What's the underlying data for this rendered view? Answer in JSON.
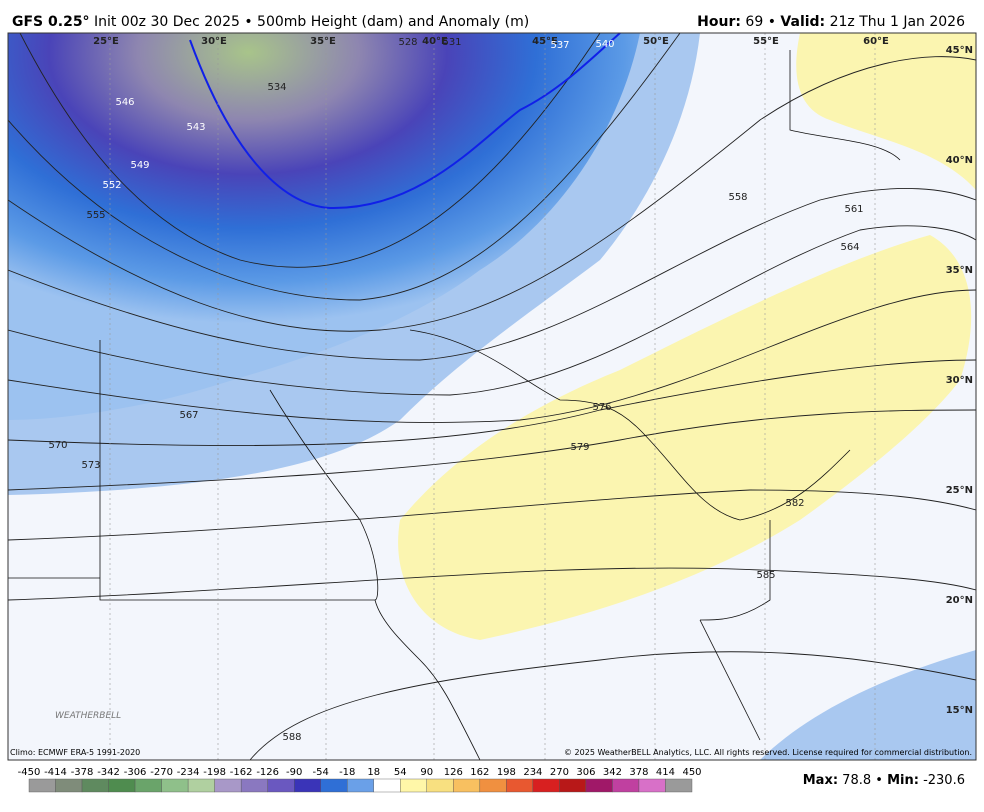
{
  "header": {
    "model": "GFS 0.25°",
    "description": "Init 00z 30 Dec 2025 • 500mb Height (dam) and Anomaly (m)",
    "hour_label": "Hour:",
    "hour": "69",
    "separator": "•",
    "valid_label": "Valid:",
    "valid": "21z Thu 1 Jan 2026"
  },
  "map": {
    "longitudes": [
      "25°E",
      "30°E",
      "35°E",
      "40°E",
      "45°E",
      "50°E",
      "55°E",
      "60°E"
    ],
    "latitudes": [
      "45°N",
      "40°N",
      "35°N",
      "30°N",
      "25°N",
      "20°N",
      "15°N"
    ],
    "contour_labels": [
      546,
      543,
      549,
      552,
      555,
      534,
      528,
      531,
      537,
      540,
      558,
      561,
      564,
      567,
      570,
      573,
      576,
      579,
      582,
      585,
      588
    ],
    "logo": "WEATHERBELL"
  },
  "footer": {
    "climo": "Climo: ECMWF ERA-5 1991-2020",
    "copyright": "© 2025 WeatherBELL Analytics, LLC. All rights reserved. License required for commercial distribution.",
    "colorbar_ticks": [
      -450,
      -414,
      -378,
      -342,
      -306,
      -270,
      -234,
      -198,
      -162,
      -126,
      -90,
      -54,
      -18,
      18,
      54,
      90,
      126,
      162,
      198,
      234,
      270,
      306,
      342,
      378,
      414,
      450
    ],
    "max_label": "Max:",
    "max": 78.8,
    "separator": "•",
    "min_label": "Min:",
    "min": -230.6
  }
}
